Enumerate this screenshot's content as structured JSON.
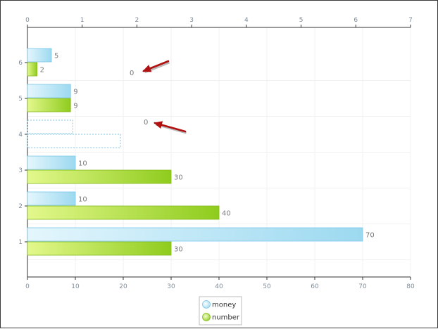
{
  "chart_data": {
    "type": "bar",
    "orientation": "horizontal",
    "categories": [
      "1",
      "2",
      "3",
      "4",
      "5",
      "6"
    ],
    "series": [
      {
        "name": "money",
        "values": [
          70,
          10,
          10,
          0,
          9,
          5
        ],
        "color_light": "#e4f6fd",
        "color_dark": "#9cd9f0",
        "stroke": "#7cc6e6"
      },
      {
        "name": "number",
        "values": [
          30,
          40,
          30,
          0,
          9,
          2
        ],
        "color_light": "#e3f88c",
        "color_dark": "#8fcc1e",
        "stroke": "#82b81a"
      }
    ],
    "x_bottom": {
      "min": 0,
      "max": 80,
      "ticks": [
        0,
        10,
        20,
        30,
        40,
        50,
        60,
        70,
        80
      ]
    },
    "x_top": {
      "min": 0,
      "max": 7,
      "ticks": [
        0,
        1,
        2,
        3,
        4,
        5,
        6,
        7
      ]
    },
    "grid": true,
    "legend": {
      "position": "bottom-center",
      "items": [
        "money",
        "number"
      ]
    },
    "annotations": [
      {
        "text": "0",
        "category": "6",
        "arrow_color": "#b01010"
      },
      {
        "text": "0",
        "category": "4",
        "arrow_color": "#b01010"
      }
    ],
    "dashed_placeholders": [
      {
        "category": "4",
        "series": "money",
        "top_axis_value": 0.83
      },
      {
        "category": "4",
        "series": "number",
        "top_axis_value": 1.7
      }
    ]
  }
}
